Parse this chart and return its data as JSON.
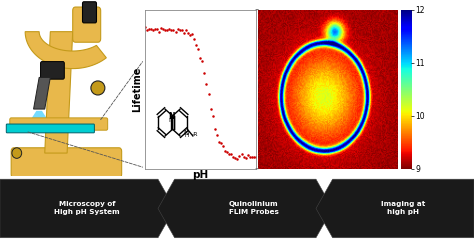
{
  "background_color": "#ffffff",
  "bottom_bar_color": "#111111",
  "bottom_text_color": "#ffffff",
  "bottom_labels": [
    "Microscopy of\nHigh pH System",
    "Quinolinium\nFLIM Probes",
    "Imaging at\nhigh pH"
  ],
  "plot_xlabel": "pH",
  "plot_ylabel": "Lifetime",
  "curve_color": "#cc0000",
  "colorbar_min": 9,
  "colorbar_max": 12,
  "colorbar_ticks": [
    9,
    10,
    11,
    12
  ],
  "micro_color": "#E8B84B",
  "micro_dark": "#C49A1A",
  "micro_black": "#222222",
  "micro_gray": "#555555",
  "micro_cyan": "#00BFFF",
  "micro_slide": "#00CED1"
}
